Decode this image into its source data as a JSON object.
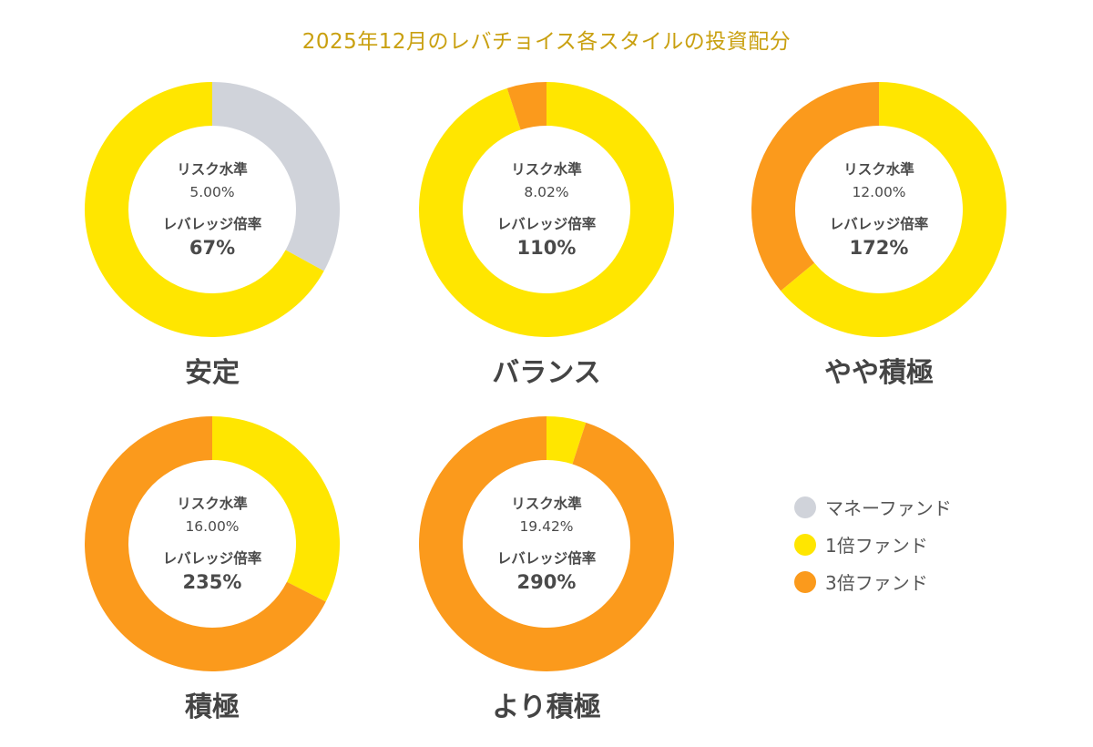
{
  "title": "2025年12月のレバチョイス各スタイルの投資配分",
  "labels": {
    "risk": "リスク水準",
    "leverage": "レバレッジ倍率"
  },
  "chart_data": {
    "type": "pie",
    "variant": "donut",
    "title": "2025年12月のレバチョイス各スタイルの投資配分",
    "series_names": [
      "マネーファンド",
      "1倍ファンド",
      "3倍ファンド"
    ],
    "colors": {
      "マネーファンド": "#d0d3da",
      "1倍ファンド": "#ffe600",
      "3倍ファンド": "#fb9a1c"
    },
    "charts": [
      {
        "style": "安定",
        "risk_level": "5.00%",
        "leverage": "67%",
        "slices": [
          {
            "name": "マネーファンド",
            "value": 33
          },
          {
            "name": "1倍ファンド",
            "value": 67
          },
          {
            "name": "3倍ファンド",
            "value": 0
          }
        ]
      },
      {
        "style": "バランス",
        "risk_level": "8.02%",
        "leverage": "110%",
        "slices": [
          {
            "name": "マネーファンド",
            "value": 0
          },
          {
            "name": "1倍ファンド",
            "value": 95
          },
          {
            "name": "3倍ファンド",
            "value": 5
          }
        ]
      },
      {
        "style": "やや積極",
        "risk_level": "12.00%",
        "leverage": "172%",
        "slices": [
          {
            "name": "マネーファンド",
            "value": 0
          },
          {
            "name": "1倍ファンド",
            "value": 64
          },
          {
            "name": "3倍ファンド",
            "value": 36
          }
        ]
      },
      {
        "style": "積極",
        "risk_level": "16.00%",
        "leverage": "235%",
        "slices": [
          {
            "name": "マネーファンド",
            "value": 0
          },
          {
            "name": "1倍ファンド",
            "value": 32.5
          },
          {
            "name": "3倍ファンド",
            "value": 67.5
          }
        ]
      },
      {
        "style": "より積極",
        "risk_level": "19.42%",
        "leverage": "290%",
        "slices": [
          {
            "name": "マネーファンド",
            "value": 0
          },
          {
            "name": "1倍ファンド",
            "value": 5
          },
          {
            "name": "3倍ファンド",
            "value": 95
          }
        ]
      }
    ],
    "legend_position": "bottom-right"
  }
}
